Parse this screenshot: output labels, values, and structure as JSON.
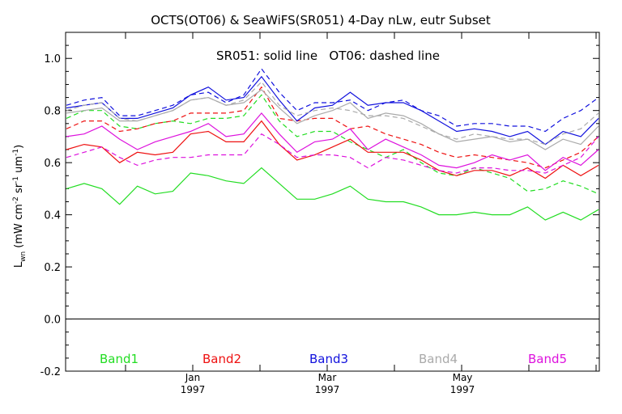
{
  "chart_data": {
    "type": "line",
    "title": "OCTS(OT06) & SeaWiFS(SR051) 4-Day nLw, eutr Subset",
    "annotation": "SR051: solid line   OT06: dashed line",
    "ylabel": "L_wn (mW cm^-2 sr^-1 um^-1)",
    "ylabel_parts": {
      "main": "L",
      "sub": "wn",
      "unit_open": " (mW cm",
      "exp1": "-2",
      "mid1": " sr",
      "exp2": "-1",
      "mid2": " um",
      "exp3": "-1",
      "unit_close": ")"
    },
    "ylim": [
      -0.2,
      1.1
    ],
    "yticks": [
      "-0.2",
      "0.0",
      "0.2",
      "0.4",
      "0.6",
      "0.8",
      "1.0"
    ],
    "xticks": [
      {
        "month": "Jan",
        "year": "1997"
      },
      {
        "month": "Mar",
        "year": "1997"
      },
      {
        "month": "May",
        "year": "1997"
      }
    ],
    "zero_line": true,
    "grid": false,
    "legend_placement": "bottom",
    "series": [
      {
        "name": "Band1",
        "color": "#22dd22",
        "solid": [
          0.5,
          0.52,
          0.5,
          0.44,
          0.51,
          0.48,
          0.49,
          0.56,
          0.55,
          0.53,
          0.52,
          0.58,
          0.52,
          0.46,
          0.46,
          0.48,
          0.51,
          0.46,
          0.45,
          0.45,
          0.43,
          0.4,
          0.4,
          0.41,
          0.4,
          0.4,
          0.43,
          0.38,
          0.41,
          0.38,
          0.42
        ],
        "dashed": [
          0.77,
          0.8,
          0.8,
          0.74,
          0.73,
          0.75,
          0.76,
          0.75,
          0.77,
          0.77,
          0.78,
          0.86,
          0.76,
          0.7,
          0.72,
          0.72,
          0.68,
          0.65,
          0.62,
          0.65,
          0.6,
          0.56,
          0.55,
          0.58,
          0.56,
          0.54,
          0.49,
          0.5,
          0.53,
          0.51,
          0.48
        ]
      },
      {
        "name": "Band2",
        "color": "#ee1111",
        "solid": [
          0.65,
          0.67,
          0.66,
          0.6,
          0.64,
          0.63,
          0.64,
          0.71,
          0.72,
          0.68,
          0.68,
          0.76,
          0.67,
          0.61,
          0.63,
          0.66,
          0.69,
          0.64,
          0.64,
          0.64,
          0.61,
          0.57,
          0.55,
          0.57,
          0.57,
          0.55,
          0.58,
          0.54,
          0.59,
          0.55,
          0.59
        ],
        "dashed": [
          0.73,
          0.76,
          0.76,
          0.72,
          0.73,
          0.75,
          0.76,
          0.79,
          0.79,
          0.79,
          0.8,
          0.89,
          0.77,
          0.76,
          0.77,
          0.77,
          0.73,
          0.74,
          0.71,
          0.69,
          0.67,
          0.64,
          0.62,
          0.63,
          0.62,
          0.61,
          0.6,
          0.58,
          0.61,
          0.64,
          0.7
        ]
      },
      {
        "name": "Band3",
        "color": "#1111dd",
        "solid": [
          0.81,
          0.82,
          0.83,
          0.77,
          0.77,
          0.79,
          0.81,
          0.86,
          0.89,
          0.84,
          0.85,
          0.93,
          0.84,
          0.76,
          0.81,
          0.82,
          0.87,
          0.82,
          0.83,
          0.83,
          0.8,
          0.76,
          0.72,
          0.73,
          0.72,
          0.7,
          0.72,
          0.67,
          0.72,
          0.7,
          0.77
        ],
        "dashed": [
          0.82,
          0.84,
          0.85,
          0.78,
          0.78,
          0.8,
          0.82,
          0.86,
          0.87,
          0.83,
          0.86,
          0.96,
          0.87,
          0.8,
          0.83,
          0.83,
          0.84,
          0.8,
          0.83,
          0.84,
          0.8,
          0.78,
          0.74,
          0.75,
          0.75,
          0.74,
          0.74,
          0.72,
          0.77,
          0.8,
          0.85
        ]
      },
      {
        "name": "Band4",
        "color": "#aaaaaa",
        "solid": [
          0.79,
          0.8,
          0.81,
          0.76,
          0.76,
          0.78,
          0.8,
          0.84,
          0.85,
          0.82,
          0.83,
          0.88,
          0.81,
          0.75,
          0.78,
          0.8,
          0.83,
          0.77,
          0.79,
          0.78,
          0.75,
          0.71,
          0.68,
          0.69,
          0.7,
          0.68,
          0.69,
          0.65,
          0.69,
          0.67,
          0.74
        ],
        "dashed": [
          0.8,
          0.82,
          0.83,
          0.77,
          0.76,
          0.78,
          0.8,
          0.84,
          0.85,
          0.82,
          0.84,
          0.91,
          0.82,
          0.78,
          0.8,
          0.81,
          0.8,
          0.78,
          0.78,
          0.77,
          0.74,
          0.71,
          0.69,
          0.71,
          0.7,
          0.69,
          0.69,
          0.67,
          0.71,
          0.73,
          0.79
        ]
      },
      {
        "name": "Band5",
        "color": "#dd11dd",
        "solid": [
          0.7,
          0.71,
          0.74,
          0.69,
          0.65,
          0.68,
          0.7,
          0.72,
          0.75,
          0.7,
          0.71,
          0.79,
          0.71,
          0.64,
          0.68,
          0.69,
          0.73,
          0.65,
          0.69,
          0.66,
          0.63,
          0.59,
          0.58,
          0.6,
          0.63,
          0.61,
          0.63,
          0.57,
          0.62,
          0.59,
          0.65
        ],
        "dashed": [
          0.62,
          0.64,
          0.66,
          0.62,
          0.59,
          0.61,
          0.62,
          0.62,
          0.63,
          0.63,
          0.63,
          0.71,
          0.67,
          0.62,
          0.63,
          0.63,
          0.62,
          0.58,
          0.62,
          0.61,
          0.59,
          0.57,
          0.56,
          0.58,
          0.58,
          0.57,
          0.57,
          0.56,
          0.59,
          0.62,
          0.7
        ]
      }
    ]
  }
}
